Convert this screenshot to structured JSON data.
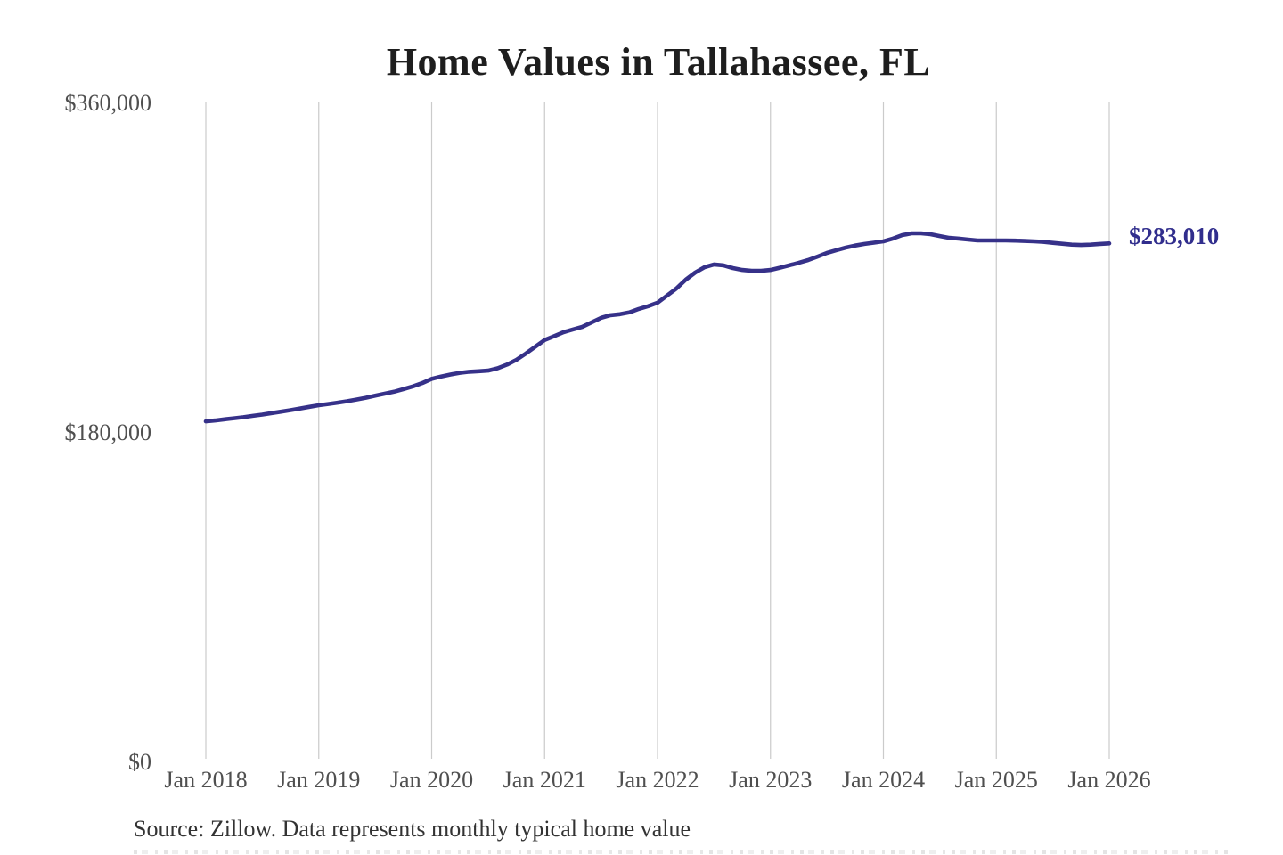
{
  "title": "Home Values in Tallahassee, FL",
  "end_label": "$283,010",
  "source": "Source: Zillow. Data represents monthly typical home value",
  "colors": {
    "background": "#ffffff",
    "line": "#363189",
    "end_label": "#312e8d",
    "grid": "#cbcbcb",
    "axis_text": "#4f4f4f",
    "title_text": "#1e1e1e",
    "source_text": "#333333"
  },
  "chart_data": {
    "type": "line",
    "title": "Home Values in Tallahassee, FL",
    "xlabel": "",
    "ylabel": "",
    "ylim": [
      0,
      360000
    ],
    "grid": "vertical-only",
    "legend": "none",
    "x_tick_labels": [
      "Jan 2018",
      "Jan 2019",
      "Jan 2020",
      "Jan 2021",
      "Jan 2022",
      "Jan 2023",
      "Jan 2024",
      "Jan 2025",
      "Jan 2026"
    ],
    "y_tick_labels": [
      "$0",
      "$180,000",
      "$360,000"
    ],
    "y_tick_values": [
      0,
      180000,
      360000
    ],
    "annotation": {
      "text": "$283,010",
      "value": 283010,
      "position": "line-end"
    },
    "series_name": "Typical home value (monthly)",
    "months": [
      "2018-01",
      "2018-02",
      "2018-03",
      "2018-04",
      "2018-05",
      "2018-06",
      "2018-07",
      "2018-08",
      "2018-09",
      "2018-10",
      "2018-11",
      "2018-12",
      "2019-01",
      "2019-02",
      "2019-03",
      "2019-04",
      "2019-05",
      "2019-06",
      "2019-07",
      "2019-08",
      "2019-09",
      "2019-10",
      "2019-11",
      "2019-12",
      "2020-01",
      "2020-02",
      "2020-03",
      "2020-04",
      "2020-05",
      "2020-06",
      "2020-07",
      "2020-08",
      "2020-09",
      "2020-10",
      "2020-11",
      "2020-12",
      "2021-01",
      "2021-02",
      "2021-03",
      "2021-04",
      "2021-05",
      "2021-06",
      "2021-07",
      "2021-08",
      "2021-09",
      "2021-10",
      "2021-11",
      "2021-12",
      "2022-01",
      "2022-02",
      "2022-03",
      "2022-04",
      "2022-05",
      "2022-06",
      "2022-07",
      "2022-08",
      "2022-09",
      "2022-10",
      "2022-11",
      "2022-12",
      "2023-01",
      "2023-02",
      "2023-03",
      "2023-04",
      "2023-05",
      "2023-06",
      "2023-07",
      "2023-08",
      "2023-09",
      "2023-10",
      "2023-11",
      "2023-12",
      "2024-01",
      "2024-02",
      "2024-03",
      "2024-04",
      "2024-05",
      "2024-06",
      "2024-07",
      "2024-08",
      "2024-09",
      "2024-10",
      "2024-11",
      "2024-12",
      "2025-01",
      "2025-02",
      "2025-03",
      "2025-04",
      "2025-05",
      "2025-06",
      "2025-07",
      "2025-08",
      "2025-09",
      "2025-10",
      "2025-11",
      "2025-12",
      "2026-01"
    ],
    "values": [
      185800,
      186300,
      186900,
      187500,
      188100,
      188800,
      189500,
      190300,
      191100,
      191900,
      192800,
      193700,
      194600,
      195300,
      196000,
      196800,
      197700,
      198700,
      199800,
      200900,
      202000,
      203400,
      204900,
      206700,
      209000,
      210300,
      211400,
      212300,
      212900,
      213200,
      213500,
      214800,
      216800,
      219400,
      222800,
      226500,
      230200,
      232300,
      234500,
      236000,
      237400,
      239900,
      242300,
      243800,
      244300,
      245300,
      247200,
      248700,
      250600,
      254500,
      258300,
      263200,
      267100,
      270000,
      271500,
      271000,
      269500,
      268500,
      268000,
      268000,
      268500,
      269700,
      271000,
      272400,
      273900,
      275800,
      277800,
      279300,
      280700,
      281800,
      282700,
      283400,
      284100,
      285600,
      287500,
      288500,
      288500,
      288000,
      287000,
      286000,
      285600,
      285100,
      284600,
      284600,
      284600,
      284600,
      284500,
      284300,
      284100,
      283800,
      283300,
      282800,
      282300,
      282100,
      282300,
      282700,
      283010
    ]
  }
}
